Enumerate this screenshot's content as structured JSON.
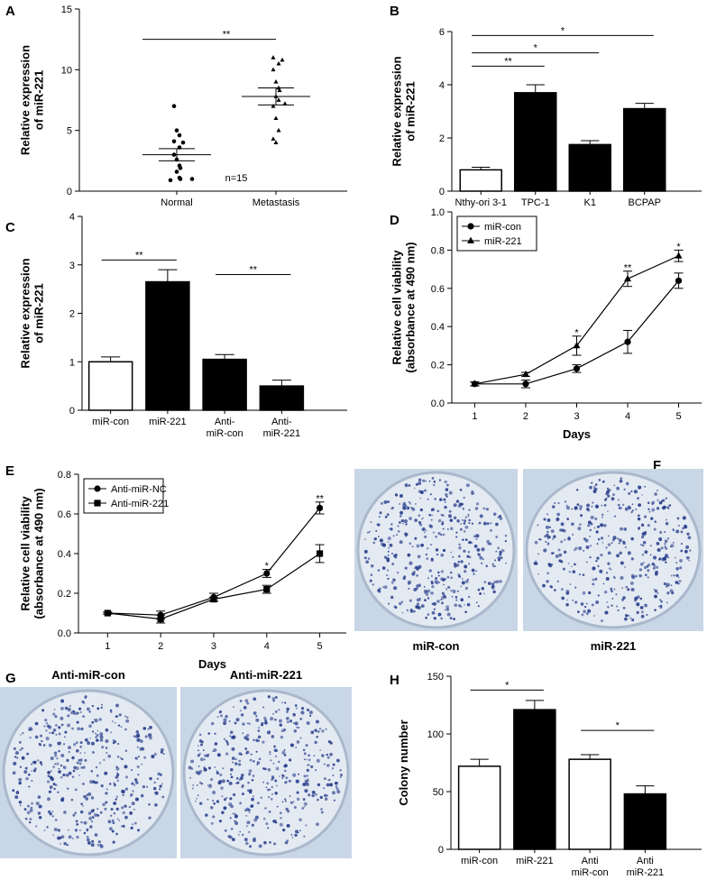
{
  "chart_data": [
    {
      "type": "scatter",
      "panel": "A",
      "ylabel": "Relative expression\nof miR-221",
      "categories": [
        "Normal",
        "Metastasis"
      ],
      "series": [
        {
          "marker": "circle",
          "color": "#000000",
          "values": [
            7.0,
            5.0,
            4.6,
            4.1,
            4.0,
            3.6,
            3.0,
            2.6,
            2.1,
            1.9,
            1.6,
            1.1,
            1.0,
            0.9,
            1.0
          ]
        },
        {
          "marker": "triangle",
          "color": "#000000",
          "values": [
            11.0,
            10.8,
            10.5,
            10.0,
            9.0,
            8.5,
            8.3,
            7.8,
            7.5,
            7.0,
            6.0,
            5.0,
            4.3,
            4.0,
            7.2
          ]
        }
      ],
      "means": [
        3.0,
        7.8
      ],
      "sems": [
        0.5,
        0.7
      ],
      "ylim": [
        0,
        15
      ],
      "yticks": [
        0,
        5,
        10,
        15
      ],
      "brackets": [
        {
          "from": 0,
          "to": 1,
          "y": 12.5,
          "label": "**"
        }
      ],
      "annotations": [
        {
          "x": 0.6,
          "y": 1.1,
          "label": "n=15"
        }
      ]
    },
    {
      "type": "bar",
      "panel": "B",
      "ylabel": "Relative expression\nof miR-221",
      "categories": [
        "Nthy-ori 3-1",
        "TPC-1",
        "K1",
        "BCPAP"
      ],
      "values": [
        0.8,
        3.7,
        1.75,
        3.1
      ],
      "errors": [
        0.1,
        0.3,
        0.15,
        0.2
      ],
      "colors": [
        "#ffffff",
        "#000000",
        "#000000",
        "#000000"
      ],
      "ylim": [
        0,
        6
      ],
      "yticks": [
        0,
        2,
        4,
        6
      ],
      "brackets": [
        {
          "from": 0,
          "to": 1,
          "y": 4.7,
          "label": "**"
        },
        {
          "from": 0,
          "to": 2,
          "y": 5.2,
          "label": "*"
        },
        {
          "from": 0,
          "to": 3,
          "y": 5.85,
          "label": "*"
        }
      ]
    },
    {
      "type": "bar",
      "panel": "C",
      "ylabel": "Relative expression\nof miR-221",
      "categories": [
        "miR-con",
        "miR-221",
        "Anti-\nmiR-con",
        "Anti-\nmiR-221"
      ],
      "values": [
        1.0,
        2.65,
        1.05,
        0.5
      ],
      "errors": [
        0.1,
        0.25,
        0.1,
        0.12
      ],
      "colors": [
        "#ffffff",
        "#000000",
        "#000000",
        "#000000"
      ],
      "ylim": [
        0,
        4
      ],
      "yticks": [
        0,
        1,
        2,
        3,
        4
      ],
      "brackets": [
        {
          "from": 0,
          "to": 1,
          "y": 3.1,
          "label": "**"
        },
        {
          "from": 2,
          "to": 3,
          "y": 2.8,
          "label": "**"
        }
      ]
    },
    {
      "type": "line",
      "panel": "D",
      "ylabel": "Relative cell viability\n(absorbance at 490 nm)",
      "xlabel": "Days",
      "x": [
        1,
        2,
        3,
        4,
        5
      ],
      "xlim": [
        0.55,
        5.45
      ],
      "xticks": [
        1,
        2,
        3,
        4,
        5
      ],
      "series": [
        {
          "name": "miR-con",
          "marker": "circle",
          "color": "#000000",
          "values": [
            0.1,
            0.1,
            0.18,
            0.32,
            0.64
          ],
          "errors": [
            0.01,
            0.02,
            0.02,
            0.06,
            0.04
          ]
        },
        {
          "name": "miR-221",
          "marker": "triangle",
          "color": "#000000",
          "values": [
            0.1,
            0.15,
            0.3,
            0.65,
            0.77
          ],
          "errors": [
            0.01,
            0.01,
            0.05,
            0.04,
            0.03
          ]
        }
      ],
      "ylim": [
        0,
        1.0
      ],
      "yticks": [
        {
          "value": 0,
          "label": "0.0"
        },
        0.2,
        0.4,
        0.6,
        0.8,
        {
          "value": 1.0,
          "label": "1.0"
        }
      ],
      "legend": "upper left",
      "annotations": [
        {
          "x": 3,
          "y": 0.37,
          "label": "*"
        },
        {
          "x": 4,
          "y": 0.71,
          "label": "**"
        },
        {
          "x": 5,
          "y": 0.82,
          "label": "*"
        }
      ]
    },
    {
      "type": "line",
      "panel": "E",
      "ylabel": "Relative cell viability\n(absorbance at 490 nm)",
      "xlabel": "Days",
      "x": [
        1,
        2,
        3,
        4,
        5
      ],
      "xlim": [
        0.45,
        5.5
      ],
      "xticks": [
        1,
        2,
        3,
        4,
        5
      ],
      "series": [
        {
          "name": "Anti-miR-NC",
          "marker": "circle",
          "color": "#000000",
          "values": [
            0.1,
            0.09,
            0.18,
            0.3,
            0.63
          ],
          "errors": [
            0.005,
            0.02,
            0.02,
            0.02,
            0.03
          ]
        },
        {
          "name": "Anti-miR-221",
          "marker": "square",
          "color": "#000000",
          "values": [
            0.1,
            0.07,
            0.17,
            0.22,
            0.4
          ],
          "errors": [
            0.005,
            0.02,
            0.01,
            0.02,
            0.045
          ]
        }
      ],
      "ylim": [
        0,
        0.8
      ],
      "yticks": [
        {
          "value": 0,
          "label": "0.0"
        },
        0.2,
        0.4,
        0.6,
        0.8
      ],
      "legend": "upper left",
      "annotations": [
        {
          "x": 4,
          "y": 0.34,
          "label": "*"
        },
        {
          "x": 5,
          "y": 0.68,
          "label": "**"
        }
      ]
    },
    {
      "type": "image",
      "panel": "F",
      "labels": [
        "miR-con",
        "miR-221"
      ]
    },
    {
      "type": "image",
      "panel": "G",
      "labels": [
        "Anti-miR-con",
        "Anti-miR-221"
      ]
    },
    {
      "type": "bar",
      "panel": "H",
      "ylabel": "Colony number",
      "categories": [
        "miR-con",
        "miR-221",
        "Anti\nmiR-con",
        "Anti\nmiR-221"
      ],
      "values": [
        72,
        121,
        78,
        48
      ],
      "errors": [
        6,
        8,
        4,
        7
      ],
      "colors": [
        "#ffffff",
        "#000000",
        "#ffffff",
        "#000000"
      ],
      "ylim": [
        0,
        150
      ],
      "yticks": [
        0,
        50,
        100,
        150
      ],
      "brackets": [
        {
          "from": 0,
          "to": 1,
          "y": 138,
          "label": "*"
        },
        {
          "from": 2,
          "to": 3,
          "y": 103,
          "label": "*"
        }
      ]
    }
  ]
}
